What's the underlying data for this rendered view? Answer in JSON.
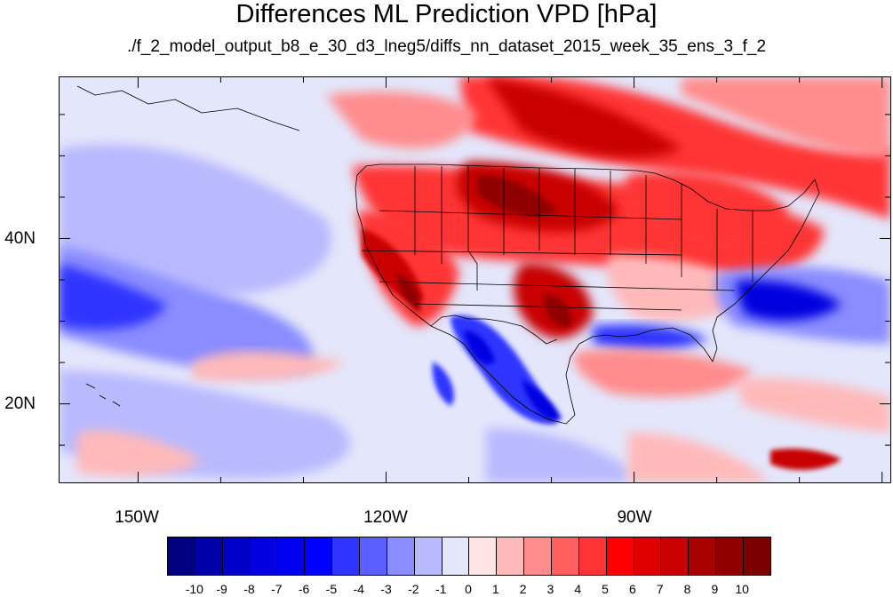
{
  "title": "Differences ML Prediction VPD [hPa]",
  "subtitle": "./f_2_model_output_b8_e_30_d3_lneg5/diffs_nn_dataset_2015_week_35_ens_3_f_2",
  "axes": {
    "lon_ticks": [
      {
        "label": "150W",
        "lon": -150
      },
      {
        "label": "120W",
        "lon": -120
      },
      {
        "label": "90W",
        "lon": -90
      }
    ],
    "lat_ticks": [
      {
        "label": "40N",
        "lat": 40
      },
      {
        "label": "20N",
        "lat": 20
      }
    ],
    "lon_range": [
      -159.5,
      -59
    ],
    "lat_range": [
      10.5,
      59.5
    ]
  },
  "colorbar": {
    "labels": [
      "-10",
      "-9",
      "-8",
      "-7",
      "-6",
      "-5",
      "-4",
      "-3",
      "-2",
      "-1",
      "0",
      "1",
      "2",
      "3",
      "4",
      "5",
      "6",
      "7",
      "8",
      "9",
      "10"
    ],
    "colors": [
      "#000080",
      "#0000a8",
      "#0000c8",
      "#0000e0",
      "#0000f0",
      "#0000ff",
      "#2f35ff",
      "#5c5fff",
      "#8a8cff",
      "#b8b9ff",
      "#e4e6fb",
      "#ffe4e4",
      "#ffb9b9",
      "#ff8c8c",
      "#ff5f5f",
      "#ff3535",
      "#ff0000",
      "#e00000",
      "#c80000",
      "#a80000",
      "#900000",
      "#7a0000"
    ]
  },
  "map_colors": {
    "ocean_neutral": "#e4e6fb",
    "blue_light": "#b8b9ff",
    "blue_mid": "#8a8cff",
    "blue_strong": "#2f35ff",
    "blue_deep": "#0000e0",
    "red_light": "#ffb9b9",
    "red_mid": "#ff8c8c",
    "red_strong": "#ff3535",
    "red_deep": "#c80000",
    "red_darkest": "#900000",
    "border_line": "#000000"
  }
}
